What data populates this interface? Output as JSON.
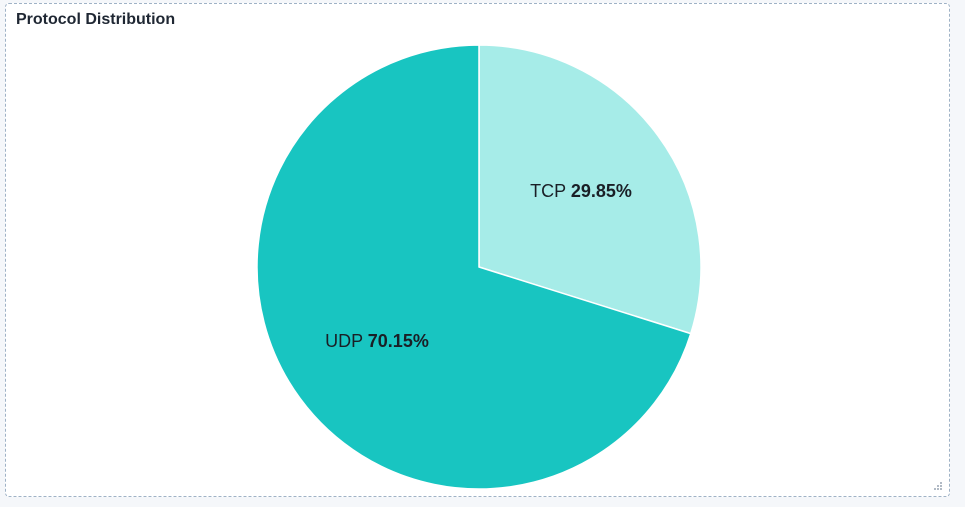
{
  "panel": {
    "title": "Protocol Distribution"
  },
  "chart_data": {
    "type": "pie",
    "title": "Protocol Distribution",
    "slices": [
      {
        "label": "TCP",
        "value": 29.85,
        "display": "29.85%",
        "color": "#a6ece8"
      },
      {
        "label": "UDP",
        "value": 70.15,
        "display": "70.15%",
        "color": "#18c5c1"
      }
    ],
    "start_angle_deg": 0,
    "direction": "clockwise",
    "slice_border_color": "#ffffff",
    "legend": "none"
  },
  "icons": {
    "resize": "resize-grip-icon"
  }
}
